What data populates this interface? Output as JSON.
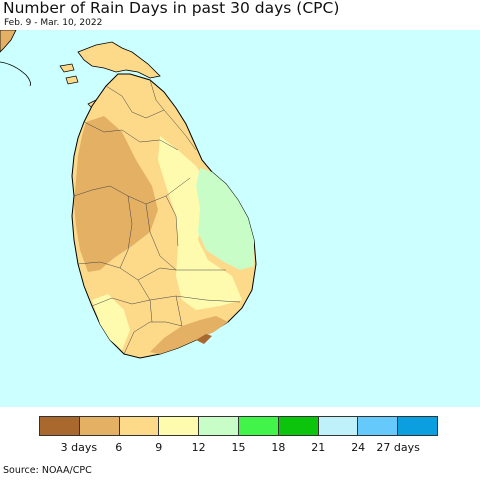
{
  "header": {
    "title": "Number of Rain Days in past 30 days (CPC)",
    "subtitle": "Feb. 9 - Mar. 10, 2022"
  },
  "map": {
    "ocean_color": "#ccffff",
    "border_color": "#000000",
    "regions": [
      {
        "name": "3-6 days",
        "color": "#e3b064"
      },
      {
        "name": "6-9 days",
        "color": "#fdd98a"
      },
      {
        "name": "9-12 days",
        "color": "#fefbaf"
      },
      {
        "name": "12-15 days",
        "color": "#c9fdc8"
      },
      {
        "name": "0-3 days",
        "color": "#a9682e"
      }
    ]
  },
  "legend": {
    "colors": [
      "#a9682e",
      "#e3b064",
      "#fdd98a",
      "#fefbaf",
      "#c9fdc8",
      "#42f44a",
      "#0cc40c",
      "#bff1fb",
      "#66c9fb",
      "#0c9fe0"
    ],
    "ticks": [
      "3 days",
      "6",
      "9",
      "12",
      "15",
      "18",
      "21",
      "24",
      "27 days"
    ]
  },
  "footer": {
    "source": "Source: NOAA/CPC"
  }
}
